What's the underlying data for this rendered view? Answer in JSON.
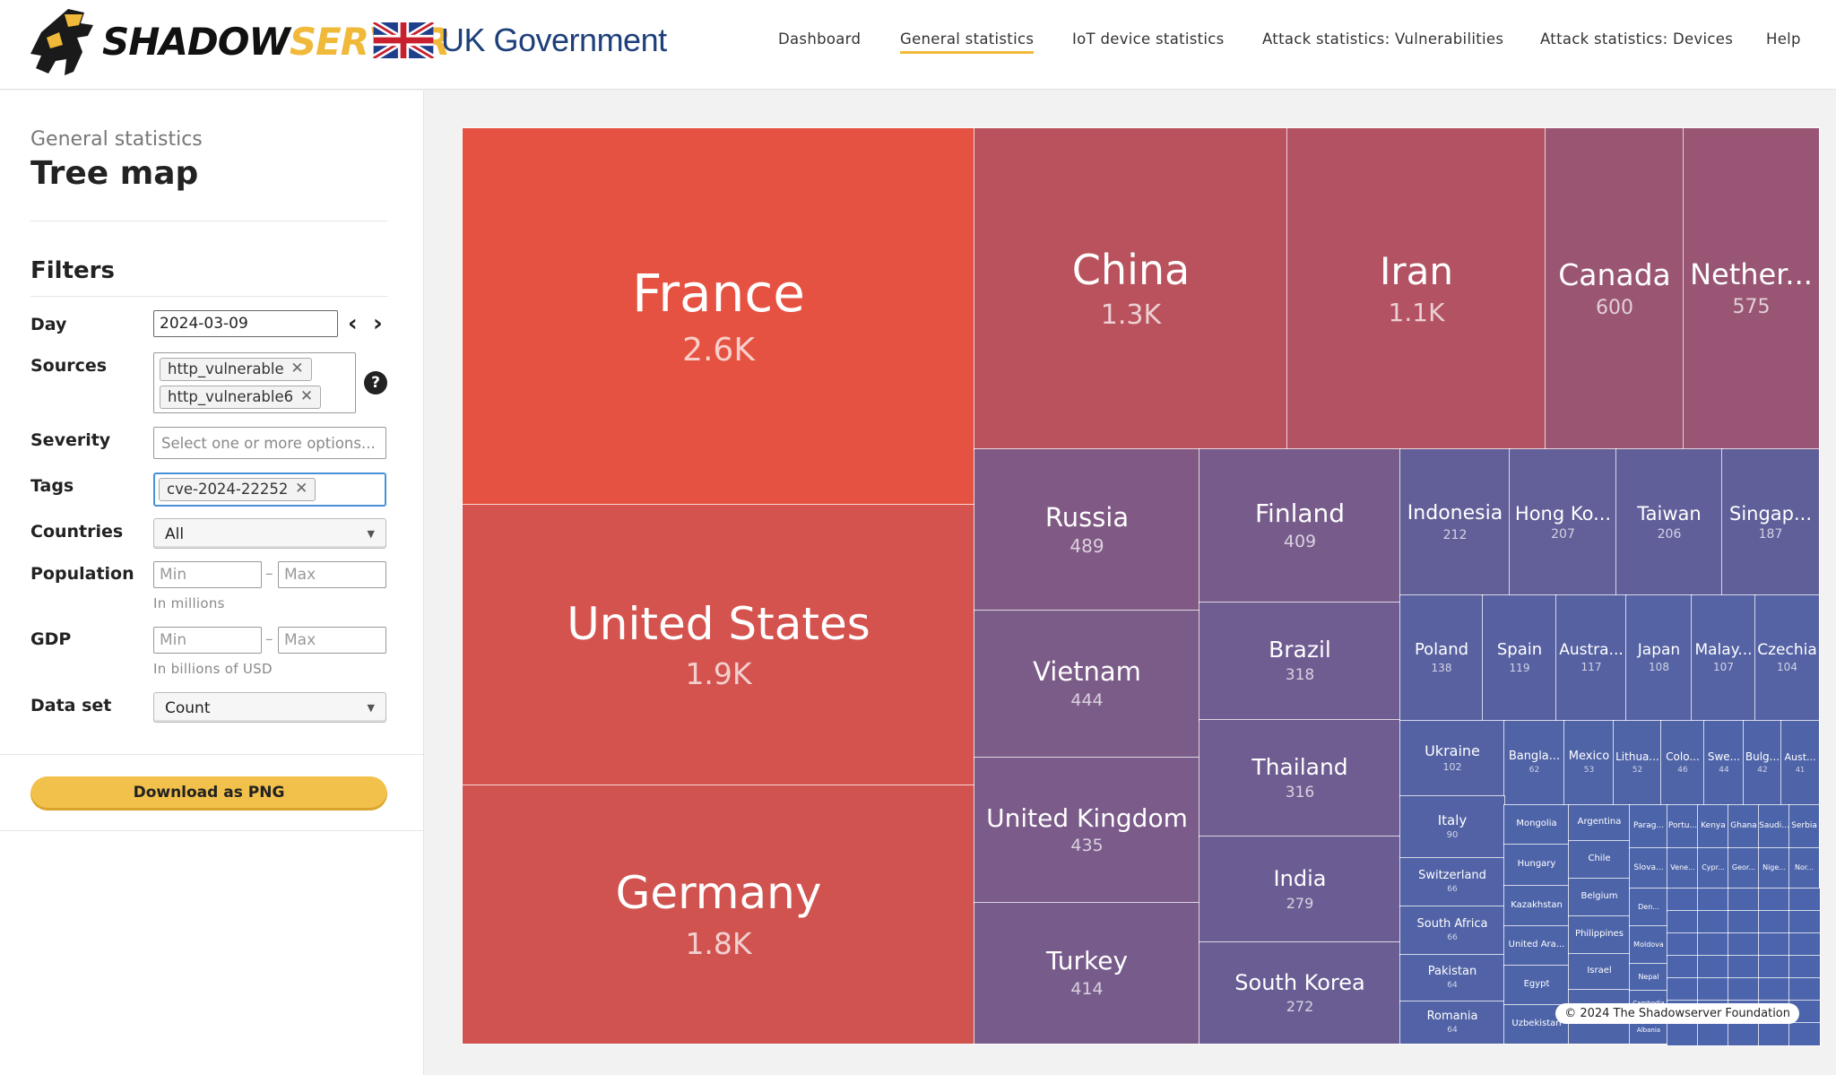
{
  "header": {
    "logo_a": "SHADOW",
    "logo_b": "SERVER",
    "gov": "UK Government",
    "nav": [
      {
        "label": "Dashboard",
        "active": false
      },
      {
        "label": "General statistics",
        "active": true
      },
      {
        "label": "IoT device statistics",
        "active": false
      },
      {
        "label": "Attack statistics: Vulnerabilities",
        "active": false
      },
      {
        "label": "Attack statistics: Devices",
        "active": false
      },
      {
        "label": "Help",
        "active": false
      }
    ]
  },
  "sidebar": {
    "crumb": "General statistics",
    "title": "Tree map",
    "filters_heading": "Filters",
    "day": {
      "label": "Day",
      "value": "2024-03-09"
    },
    "sources": {
      "label": "Sources",
      "chips": [
        "http_vulnerable",
        "http_vulnerable6"
      ]
    },
    "severity": {
      "label": "Severity",
      "placeholder": "Select one or more options..."
    },
    "tags": {
      "label": "Tags",
      "chips": [
        "cve-2024-22252"
      ]
    },
    "countries": {
      "label": "Countries",
      "value": "All"
    },
    "population": {
      "label": "Population",
      "min": "Min",
      "max": "Max",
      "hint": "In millions"
    },
    "gdp": {
      "label": "GDP",
      "min": "Min",
      "max": "Max",
      "hint": "In billions of USD"
    },
    "dataset": {
      "label": "Data set",
      "value": "Count"
    },
    "download": "Download as PNG"
  },
  "treemap": {
    "copyright": "© 2024 The Shadowserver Foundation",
    "tiles": [
      {
        "name": "France",
        "value": "2.6K",
        "color": "#e65241"
      },
      {
        "name": "United States",
        "value": "1.9K",
        "color": "#d4534e"
      },
      {
        "name": "Germany",
        "value": "1.8K",
        "color": "#d05350"
      },
      {
        "name": "China",
        "value": "1.3K",
        "color": "#b9525d"
      },
      {
        "name": "Iran",
        "value": "1.1K",
        "color": "#b25262"
      },
      {
        "name": "Canada",
        "value": "600",
        "color": "#9a5573"
      },
      {
        "name": "Nether...",
        "value": "575",
        "color": "#985574"
      },
      {
        "name": "Russia",
        "value": "489",
        "color": "#805a85"
      },
      {
        "name": "Vietnam",
        "value": "444",
        "color": "#7b5b88"
      },
      {
        "name": "United Kingdom",
        "value": "435",
        "color": "#7a5b89"
      },
      {
        "name": "Turkey",
        "value": "414",
        "color": "#775b8b"
      },
      {
        "name": "Finland",
        "value": "409",
        "color": "#765b8b"
      },
      {
        "name": "Brazil",
        "value": "318",
        "color": "#6f5c90"
      },
      {
        "name": "Thailand",
        "value": "316",
        "color": "#6f5c90"
      },
      {
        "name": "India",
        "value": "279",
        "color": "#6b5d93"
      },
      {
        "name": "South Korea",
        "value": "272",
        "color": "#6a5d93"
      },
      {
        "name": "Indonesia",
        "value": "212",
        "color": "#625f98"
      },
      {
        "name": "Hong Ko...",
        "value": "207",
        "color": "#625f99"
      },
      {
        "name": "Taiwan",
        "value": "206",
        "color": "#615f99"
      },
      {
        "name": "Singap...",
        "value": "187",
        "color": "#5f5f9a"
      },
      {
        "name": "Poland",
        "value": "138",
        "color": "#5961a0"
      },
      {
        "name": "Spain",
        "value": "119",
        "color": "#5761a1"
      },
      {
        "name": "Austra...",
        "value": "117",
        "color": "#5661a2"
      },
      {
        "name": "Japan",
        "value": "108",
        "color": "#5562a3"
      },
      {
        "name": "Malay...",
        "value": "107",
        "color": "#5562a3"
      },
      {
        "name": "Czechia",
        "value": "104",
        "color": "#5562a3"
      },
      {
        "name": "Ukraine",
        "value": "102",
        "color": "#5462a4"
      },
      {
        "name": "Bangla...",
        "value": "62",
        "color": "#5063a6"
      },
      {
        "name": "Mexico",
        "value": "53",
        "color": "#4f63a7"
      },
      {
        "name": "Lithua...",
        "value": "52",
        "color": "#4f63a7"
      },
      {
        "name": "Colo...",
        "value": "46",
        "color": "#4f63a7"
      },
      {
        "name": "Swe...",
        "value": "44",
        "color": "#4e63a8"
      },
      {
        "name": "Bulg...",
        "value": "42",
        "color": "#4e63a8"
      },
      {
        "name": "Aust...",
        "value": "41",
        "color": "#4e63a8"
      },
      {
        "name": "Italy",
        "value": "90",
        "color": "#5362a4"
      },
      {
        "name": "Switzerland",
        "value": "66",
        "color": "#5163a6"
      },
      {
        "name": "South Africa",
        "value": "66",
        "color": "#5163a6"
      },
      {
        "name": "Pakistan",
        "value": "64",
        "color": "#5163a6"
      },
      {
        "name": "Romania",
        "value": "64",
        "color": "#5163a6"
      },
      {
        "name": "Mongolia",
        "value": "",
        "color": "#4d64a9"
      },
      {
        "name": "Argentina",
        "value": "",
        "color": "#4d64a9"
      },
      {
        "name": "Hungary",
        "value": "",
        "color": "#4d64a9"
      },
      {
        "name": "Chile",
        "value": "",
        "color": "#4d64a9"
      },
      {
        "name": "Kazakhstan",
        "value": "",
        "color": "#4d64a9"
      },
      {
        "name": "Belgium",
        "value": "",
        "color": "#4d64a9"
      },
      {
        "name": "United Ara...",
        "value": "",
        "color": "#4d64a9"
      },
      {
        "name": "Philippines",
        "value": "",
        "color": "#4d64a9"
      },
      {
        "name": "Egypt",
        "value": "",
        "color": "#4d64a9"
      },
      {
        "name": "Israel",
        "value": "",
        "color": "#4d64a9"
      },
      {
        "name": "Uzbekistan",
        "value": "",
        "color": "#4d64a9"
      },
      {
        "name": "Greece",
        "value": "",
        "color": "#4d64a9"
      },
      {
        "name": "Parag...",
        "value": "",
        "color": "#4c64aa"
      },
      {
        "name": "Portu...",
        "value": "",
        "color": "#4c64aa"
      },
      {
        "name": "Kenya",
        "value": "",
        "color": "#4c64aa"
      },
      {
        "name": "Ghana",
        "value": "",
        "color": "#4c64aa"
      },
      {
        "name": "Saudi...",
        "value": "",
        "color": "#4c64aa"
      },
      {
        "name": "Serbia",
        "value": "",
        "color": "#4c64aa"
      },
      {
        "name": "Slova...",
        "value": "",
        "color": "#4c64aa"
      },
      {
        "name": "Vene...",
        "value": "",
        "color": "#4c64aa"
      },
      {
        "name": "Cypr...",
        "value": "",
        "color": "#4c64aa"
      },
      {
        "name": "Geor...",
        "value": "",
        "color": "#4c64aa"
      },
      {
        "name": "Nige...",
        "value": "",
        "color": "#4c64aa"
      },
      {
        "name": "Nor...",
        "value": "",
        "color": "#4c64aa"
      },
      {
        "name": "Den...",
        "value": "",
        "color": "#4c64aa"
      },
      {
        "name": "Moldova",
        "value": "",
        "color": "#4c64aa"
      },
      {
        "name": "Nepal",
        "value": "",
        "color": "#4c64aa"
      },
      {
        "name": "Cambodia",
        "value": "",
        "color": "#4c64aa"
      },
      {
        "name": "Albania",
        "value": "",
        "color": "#4c64aa"
      }
    ]
  }
}
